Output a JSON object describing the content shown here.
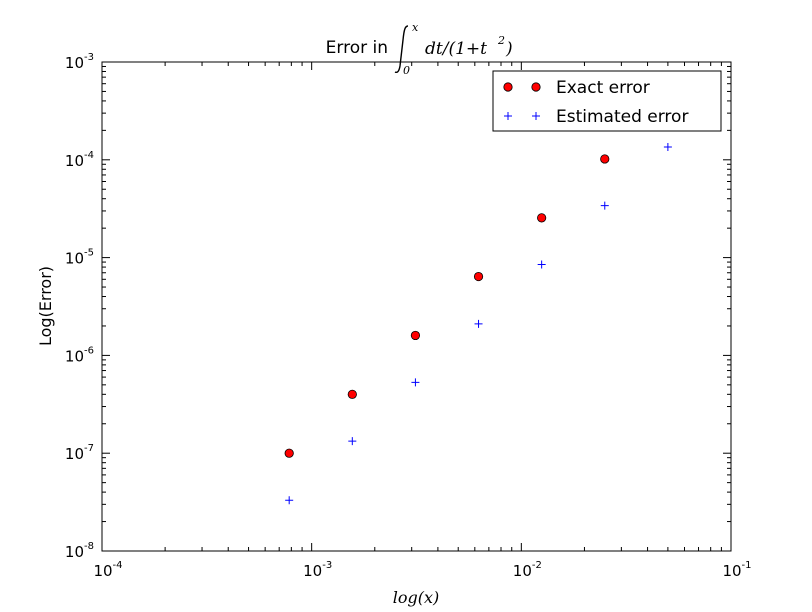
{
  "chart_data": {
    "type": "scatter",
    "title_prefix": "Error in",
    "title_math": "∫₀ˣ dt/(1+t²)",
    "xlabel": "log(x)",
    "ylabel": "Log(Error)",
    "xscale": "log",
    "yscale": "log",
    "xlim": [
      0.0001,
      0.1
    ],
    "ylim": [
      1e-08,
      0.001
    ],
    "x_ticks": [
      {
        "value": 0.0001,
        "base": "10",
        "exp": "-4"
      },
      {
        "value": 0.001,
        "base": "10",
        "exp": "-3"
      },
      {
        "value": 0.01,
        "base": "10",
        "exp": "-2"
      },
      {
        "value": 0.1,
        "base": "10",
        "exp": "-1"
      }
    ],
    "y_ticks": [
      {
        "value": 1e-08,
        "base": "10",
        "exp": "-8"
      },
      {
        "value": 1e-07,
        "base": "10",
        "exp": "-7"
      },
      {
        "value": 1e-06,
        "base": "10",
        "exp": "-6"
      },
      {
        "value": 1e-05,
        "base": "10",
        "exp": "-5"
      },
      {
        "value": 0.0001,
        "base": "10",
        "exp": "-4"
      },
      {
        "value": 0.001,
        "base": "10",
        "exp": "-3"
      }
    ],
    "grid": false,
    "legend_position": "top-right",
    "series": [
      {
        "name": "Exact error",
        "marker": "circle",
        "color": "#ff0000",
        "edge": "#000000",
        "x": [
          0.00078125,
          0.0015625,
          0.003125,
          0.00625,
          0.0125,
          0.025
        ],
        "y": [
          1e-07,
          4e-07,
          1.6e-06,
          6.4e-06,
          2.55e-05,
          0.000102
        ]
      },
      {
        "name": "Estimated error",
        "marker": "plus",
        "color": "#0000ff",
        "x": [
          0.00078125,
          0.0015625,
          0.003125,
          0.00625,
          0.0125,
          0.025,
          0.05
        ],
        "y": [
          3.3e-08,
          1.33e-07,
          5.3e-07,
          2.1e-06,
          8.5e-06,
          3.4e-05,
          0.000135
        ]
      }
    ]
  }
}
